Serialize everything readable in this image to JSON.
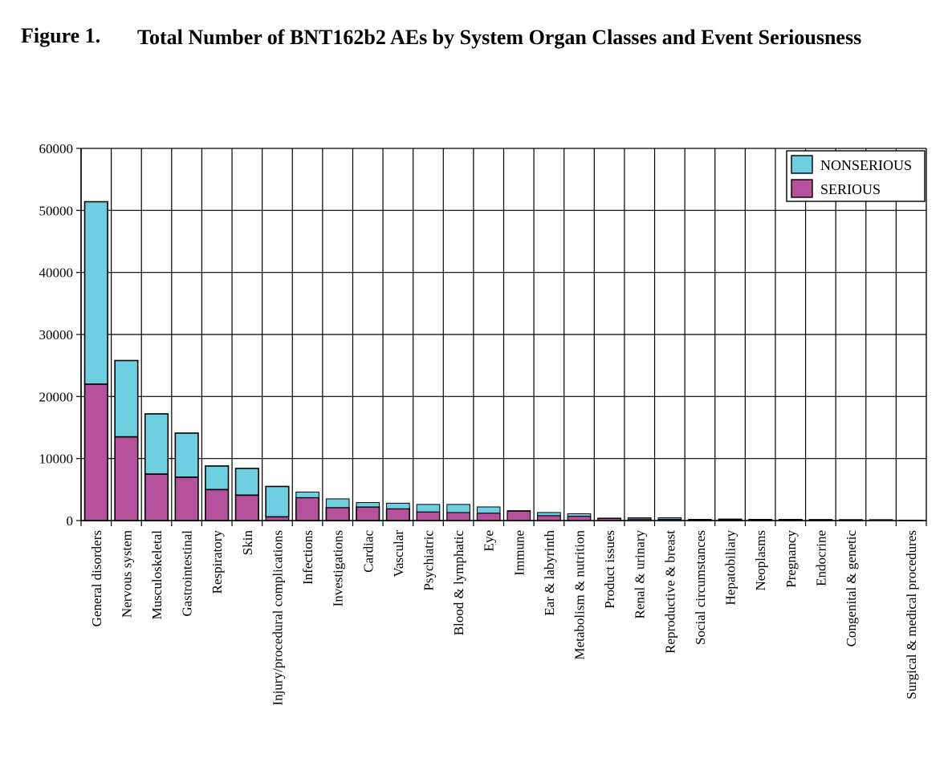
{
  "figure": {
    "label": "Figure 1.",
    "title": "Total Number of BNT162b2 AEs by System Organ Classes and Event Seriousness"
  },
  "chart_data": {
    "type": "bar",
    "stacked": true,
    "categories": [
      "General disorders",
      "Nervous system",
      "Musculoskeletal",
      "Gastrointestinal",
      "Respiratory",
      "Skin",
      "Injury/procedural complications",
      "Infections",
      "Investigations",
      "Cardiac",
      "Vascular",
      "Psychiatric",
      "Blood & lymphatic",
      "Eye",
      "Immune",
      "Ear & labyrinth",
      "Metabolism & nutrition",
      "Product issues",
      "Renal & urinary",
      "Reproductive & breast",
      "Social circumstances",
      "Hepatobiliary",
      "Neoplasms",
      "Pregnancy",
      "Endocrine",
      "Congenital & genetic",
      "",
      "Surgical & medical procedures"
    ],
    "series": [
      {
        "name": "SERIOUS",
        "color": "#b6529c",
        "values": [
          22000,
          13500,
          7500,
          7000,
          5000,
          4100,
          600,
          3700,
          2100,
          2200,
          1900,
          1400,
          1300,
          1200,
          1500,
          800,
          700,
          350,
          250,
          200,
          80,
          150,
          150,
          120,
          80,
          60,
          0,
          50
        ]
      },
      {
        "name": "NONSERIOUS",
        "color": "#6dcfdf",
        "values": [
          29400,
          12300,
          9700,
          7100,
          3800,
          4300,
          4900,
          900,
          1400,
          700,
          900,
          1200,
          1300,
          1000,
          100,
          500,
          400,
          50,
          200,
          250,
          120,
          100,
          50,
          80,
          100,
          100,
          150,
          20
        ]
      }
    ],
    "yticks": [
      "0",
      "10000",
      "20000",
      "30000",
      "40000",
      "50000",
      "60000"
    ],
    "ylim": [
      0,
      60000
    ],
    "grid": true,
    "legend": "top-right",
    "legend_order": [
      "NONSERIOUS",
      "SERIOUS"
    ]
  }
}
